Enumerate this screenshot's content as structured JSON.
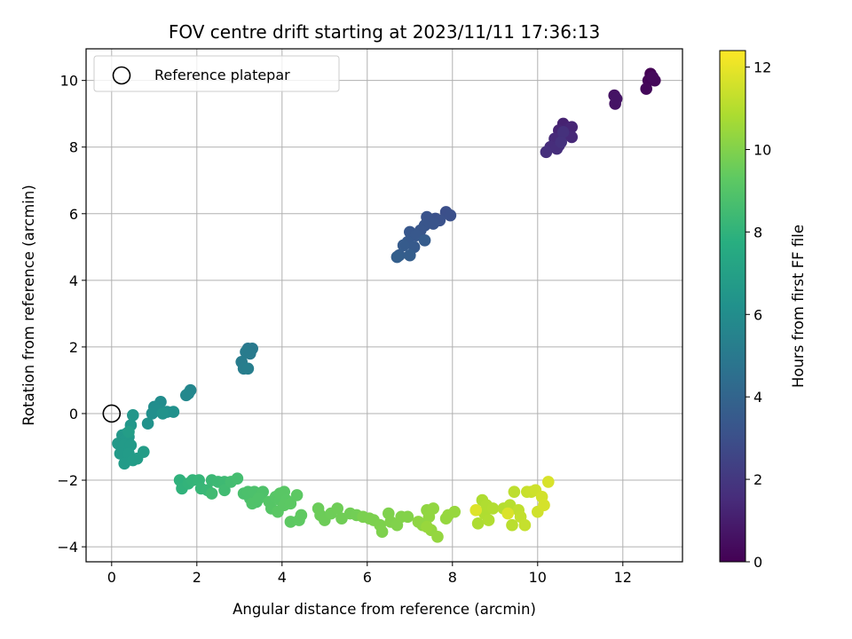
{
  "chart_data": {
    "type": "scatter",
    "title": "FOV centre drift starting at 2023/11/11 17:36:13",
    "xlabel": "Angular distance from reference (arcmin)",
    "ylabel": "Rotation from reference (arcmin)",
    "xlim": [
      -0.6,
      13.4
    ],
    "ylim": [
      -4.45,
      10.95
    ],
    "xticks": [
      0,
      2,
      4,
      6,
      8,
      10,
      12
    ],
    "yticks": [
      -4,
      -2,
      0,
      2,
      4,
      6,
      8,
      10
    ],
    "grid": true,
    "legend": {
      "placement": "top-left",
      "entries": [
        "Reference platepar"
      ]
    },
    "reference_point": {
      "x": 0,
      "y": 0
    },
    "colorbar": {
      "label": "Hours from first FF file",
      "range": [
        0,
        12.4
      ],
      "ticks": [
        0,
        2,
        4,
        6,
        8,
        10,
        12
      ],
      "colormap": "viridis"
    },
    "points": [
      [
        12.65,
        10.2,
        0.05
      ],
      [
        12.7,
        10.05,
        0.1
      ],
      [
        12.6,
        10.0,
        0.15
      ],
      [
        12.75,
        10.0,
        0.2
      ],
      [
        12.55,
        9.75,
        0.25
      ],
      [
        12.7,
        10.1,
        0.3
      ],
      [
        11.8,
        9.55,
        0.6
      ],
      [
        11.82,
        9.3,
        0.65
      ],
      [
        11.85,
        9.45,
        0.7
      ],
      [
        10.6,
        8.7,
        1.2
      ],
      [
        10.7,
        8.55,
        1.25
      ],
      [
        10.5,
        8.5,
        1.3
      ],
      [
        10.8,
        8.6,
        1.35
      ],
      [
        10.6,
        8.35,
        1.4
      ],
      [
        10.8,
        8.3,
        1.45
      ],
      [
        10.4,
        8.25,
        1.5
      ],
      [
        10.5,
        8.05,
        1.55
      ],
      [
        10.3,
        8.0,
        1.6
      ],
      [
        10.45,
        7.95,
        1.65
      ],
      [
        10.2,
        7.85,
        1.7
      ],
      [
        10.6,
        8.45,
        1.75
      ],
      [
        10.55,
        8.15,
        1.8
      ],
      [
        7.85,
        6.05,
        3.0
      ],
      [
        7.95,
        5.95,
        3.05
      ],
      [
        7.6,
        5.85,
        3.1
      ],
      [
        7.7,
        5.8,
        3.15
      ],
      [
        7.4,
        5.9,
        3.2
      ],
      [
        7.55,
        5.7,
        3.25
      ],
      [
        7.35,
        5.65,
        3.3
      ],
      [
        7.25,
        5.5,
        3.35
      ],
      [
        7.0,
        5.45,
        3.4
      ],
      [
        7.15,
        5.35,
        3.45
      ],
      [
        6.95,
        5.15,
        3.5
      ],
      [
        7.1,
        5.0,
        3.55
      ],
      [
        6.85,
        5.05,
        3.6
      ],
      [
        7.35,
        5.2,
        3.65
      ],
      [
        6.75,
        4.75,
        3.7
      ],
      [
        7.0,
        4.75,
        3.75
      ],
      [
        6.7,
        4.7,
        3.8
      ],
      [
        3.2,
        1.95,
        5.0
      ],
      [
        3.3,
        1.95,
        5.05
      ],
      [
        3.25,
        1.8,
        5.1
      ],
      [
        3.15,
        1.85,
        5.15
      ],
      [
        3.05,
        1.55,
        5.2
      ],
      [
        3.1,
        1.35,
        5.25
      ],
      [
        3.2,
        1.35,
        5.3
      ],
      [
        1.85,
        0.7,
        5.7
      ],
      [
        1.8,
        0.6,
        5.75
      ],
      [
        1.75,
        0.55,
        5.8
      ],
      [
        1.15,
        0.35,
        6.0
      ],
      [
        1.0,
        0.2,
        6.05
      ],
      [
        1.1,
        0.1,
        6.1
      ],
      [
        0.95,
        0.0,
        6.15
      ],
      [
        1.3,
        0.05,
        6.2
      ],
      [
        1.45,
        0.05,
        6.25
      ],
      [
        0.85,
        -0.3,
        6.3
      ],
      [
        1.2,
        0.0,
        6.35
      ],
      [
        0.5,
        -0.05,
        6.5
      ],
      [
        0.45,
        -0.35,
        6.55
      ],
      [
        0.35,
        -0.6,
        6.6
      ],
      [
        0.25,
        -0.65,
        6.62
      ],
      [
        0.4,
        -0.7,
        6.65
      ],
      [
        0.3,
        -0.8,
        6.68
      ],
      [
        0.15,
        -0.9,
        6.7
      ],
      [
        0.3,
        -0.95,
        6.72
      ],
      [
        0.45,
        -0.95,
        6.74
      ],
      [
        0.2,
        -1.2,
        6.76
      ],
      [
        0.4,
        -1.2,
        6.78
      ],
      [
        0.3,
        -1.5,
        6.8
      ],
      [
        0.5,
        -1.4,
        6.82
      ],
      [
        0.6,
        -1.35,
        6.84
      ],
      [
        0.75,
        -1.15,
        6.86
      ],
      [
        0.4,
        -0.55,
        6.88
      ],
      [
        1.6,
        -2.0,
        8.0
      ],
      [
        1.65,
        -2.25,
        8.05
      ],
      [
        1.8,
        -2.1,
        8.1
      ],
      [
        1.9,
        -2.0,
        8.15
      ],
      [
        2.05,
        -2.0,
        8.2
      ],
      [
        2.1,
        -2.25,
        8.25
      ],
      [
        2.25,
        -2.3,
        8.3
      ],
      [
        2.35,
        -2.0,
        8.35
      ],
      [
        2.5,
        -2.05,
        8.4
      ],
      [
        2.65,
        -2.05,
        8.45
      ],
      [
        2.35,
        -2.4,
        8.5
      ],
      [
        2.65,
        -2.3,
        8.55
      ],
      [
        2.8,
        -2.05,
        8.6
      ],
      [
        2.95,
        -1.95,
        8.65
      ],
      [
        3.1,
        -2.4,
        8.8
      ],
      [
        3.2,
        -2.35,
        8.82
      ],
      [
        3.25,
        -2.55,
        8.84
      ],
      [
        3.35,
        -2.35,
        8.86
      ],
      [
        3.4,
        -2.65,
        8.88
      ],
      [
        3.5,
        -2.45,
        8.9
      ],
      [
        3.55,
        -2.35,
        8.92
      ],
      [
        3.3,
        -2.7,
        8.94
      ],
      [
        3.45,
        -2.55,
        8.96
      ],
      [
        3.7,
        -2.65,
        9.1
      ],
      [
        3.75,
        -2.85,
        9.12
      ],
      [
        3.85,
        -2.5,
        9.14
      ],
      [
        3.95,
        -2.6,
        9.16
      ],
      [
        3.95,
        -2.4,
        9.18
      ],
      [
        4.05,
        -2.35,
        9.2
      ],
      [
        4.1,
        -2.6,
        9.22
      ],
      [
        3.9,
        -2.95,
        9.24
      ],
      [
        4.05,
        -2.75,
        9.26
      ],
      [
        4.2,
        -2.7,
        9.28
      ],
      [
        4.35,
        -2.45,
        9.3
      ],
      [
        4.2,
        -3.25,
        9.32
      ],
      [
        4.4,
        -3.2,
        9.34
      ],
      [
        4.45,
        -3.05,
        9.36
      ],
      [
        4.85,
        -2.85,
        9.6
      ],
      [
        4.9,
        -3.05,
        9.62
      ],
      [
        5.0,
        -3.2,
        9.64
      ],
      [
        5.15,
        -3.0,
        9.66
      ],
      [
        5.3,
        -2.85,
        9.68
      ],
      [
        5.4,
        -3.15,
        9.7
      ],
      [
        5.6,
        -3.0,
        9.72
      ],
      [
        5.75,
        -3.05,
        9.74
      ],
      [
        5.9,
        -3.1,
        9.9
      ],
      [
        6.05,
        -3.15,
        9.92
      ],
      [
        6.15,
        -3.2,
        9.94
      ],
      [
        6.3,
        -3.35,
        9.96
      ],
      [
        6.35,
        -3.55,
        9.98
      ],
      [
        6.5,
        -3.0,
        10.0
      ],
      [
        6.55,
        -3.25,
        10.02
      ],
      [
        6.7,
        -3.35,
        10.04
      ],
      [
        6.8,
        -3.1,
        10.06
      ],
      [
        6.95,
        -3.1,
        10.08
      ],
      [
        7.2,
        -3.25,
        10.3
      ],
      [
        7.3,
        -3.35,
        10.32
      ],
      [
        7.4,
        -2.9,
        10.34
      ],
      [
        7.45,
        -3.1,
        10.36
      ],
      [
        7.55,
        -2.85,
        10.38
      ],
      [
        7.5,
        -3.5,
        10.4
      ],
      [
        7.65,
        -3.7,
        10.42
      ],
      [
        7.85,
        -3.15,
        10.44
      ],
      [
        7.9,
        -3.05,
        10.46
      ],
      [
        8.05,
        -2.95,
        10.48
      ],
      [
        7.4,
        -3.4,
        10.5
      ],
      [
        8.6,
        -3.3,
        10.9
      ],
      [
        8.7,
        -2.6,
        10.92
      ],
      [
        8.75,
        -3.0,
        10.94
      ],
      [
        8.8,
        -2.75,
        10.96
      ],
      [
        8.85,
        -3.2,
        10.98
      ],
      [
        8.95,
        -2.85,
        11.0
      ],
      [
        9.2,
        -2.85,
        11.05
      ],
      [
        9.35,
        -2.75,
        11.1
      ],
      [
        9.4,
        -3.35,
        11.15
      ],
      [
        9.45,
        -2.35,
        11.2
      ],
      [
        9.55,
        -2.9,
        11.25
      ],
      [
        9.6,
        -3.1,
        11.3
      ],
      [
        9.7,
        -3.35,
        11.35
      ],
      [
        9.75,
        -2.35,
        11.4
      ],
      [
        9.85,
        -2.35,
        11.45
      ],
      [
        9.95,
        -2.3,
        11.5
      ],
      [
        10.0,
        -2.95,
        11.55
      ],
      [
        10.1,
        -2.5,
        11.6
      ],
      [
        10.15,
        -2.75,
        11.65
      ],
      [
        10.25,
        -2.05,
        11.7
      ],
      [
        9.3,
        -3.0,
        11.75
      ],
      [
        8.55,
        -2.9,
        11.8
      ]
    ]
  }
}
